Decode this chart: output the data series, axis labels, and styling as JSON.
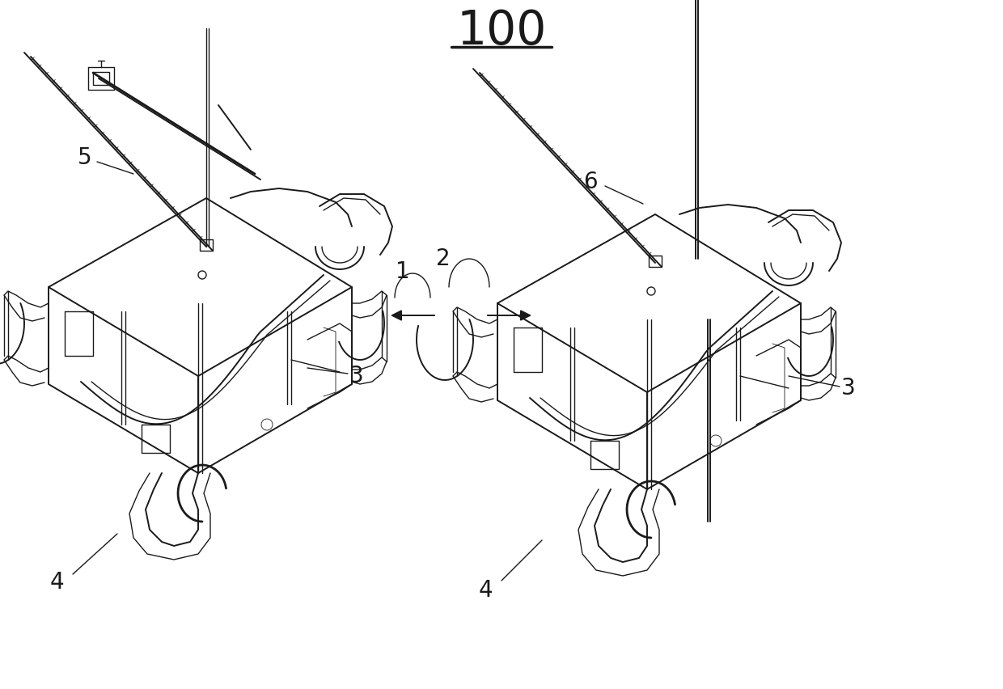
{
  "title": "100",
  "bg_color": "#ffffff",
  "line_color": "#1a1a1a",
  "figsize": [
    12.4,
    8.52
  ],
  "dpi": 100
}
